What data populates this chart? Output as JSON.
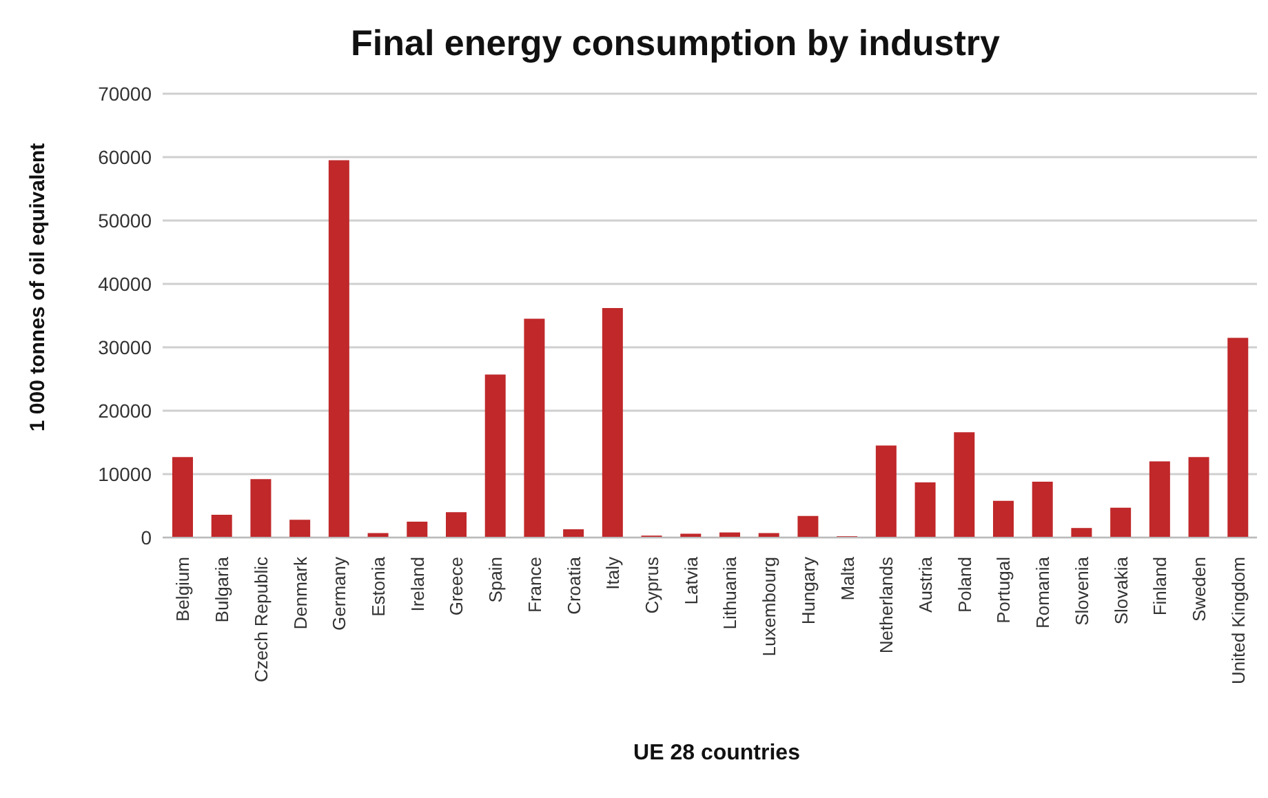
{
  "chart_data": {
    "type": "bar",
    "title": "Final energy consumption by industry",
    "xlabel": "UE 28 countries",
    "ylabel": "1 000 tonnes of oil equivalent",
    "categories": [
      "Belgium",
      "Bulgaria",
      "Czech Republic",
      "Denmark",
      "Germany",
      "Estonia",
      "Ireland",
      "Greece",
      "Spain",
      "France",
      "Croatia",
      "Italy",
      "Cyprus",
      "Latvia",
      "Lithuania",
      "Luxembourg",
      "Hungary",
      "Malta",
      "Netherlands",
      "Austria",
      "Poland",
      "Portugal",
      "Romania",
      "Slovenia",
      "Slovakia",
      "Finland",
      "Sweden",
      "United Kingdom"
    ],
    "values": [
      12700,
      3600,
      9200,
      2800,
      59500,
      700,
      2500,
      4000,
      25700,
      34500,
      1300,
      36200,
      300,
      600,
      800,
      700,
      3400,
      200,
      14500,
      8700,
      16600,
      5800,
      8800,
      1500,
      4700,
      12000,
      12700,
      31500
    ],
    "color": "#c0282a",
    "ylim": [
      0,
      70000
    ],
    "yticks": [
      0,
      10000,
      20000,
      30000,
      40000,
      50000,
      60000,
      70000
    ],
    "grid": "y",
    "legend": false
  }
}
